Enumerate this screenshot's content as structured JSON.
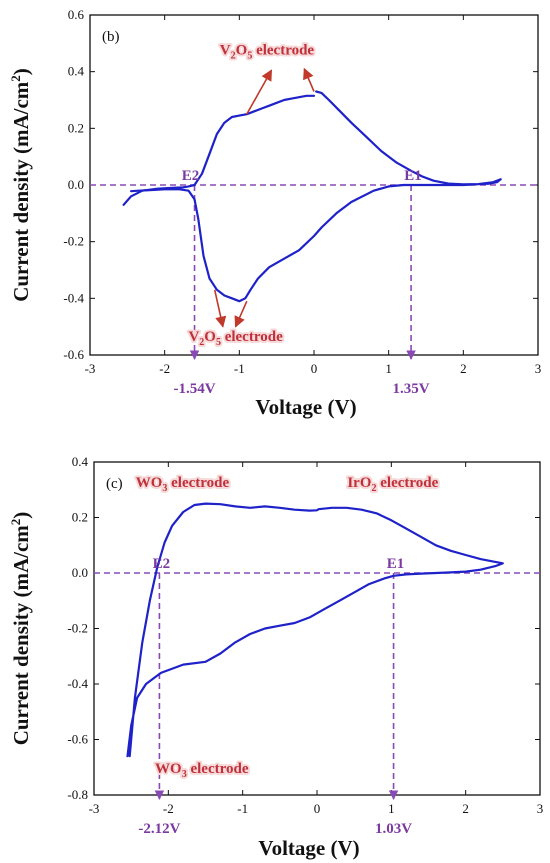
{
  "chart_data": [
    {
      "type": "line",
      "panel_label": "(b)",
      "xlabel": "Voltage (V)",
      "ylabel": "Current density (mA/cm2)",
      "ylabel_main": "Current density (mA/cm",
      "ylabel_sup": "2",
      "ylabel_close": ")",
      "xlim": [
        -3,
        3
      ],
      "ylim": [
        -0.6,
        0.6
      ],
      "xticks": [
        -3,
        -2,
        -1,
        0,
        1,
        2,
        3
      ],
      "yticks": [
        -0.6,
        -0.4,
        -0.2,
        0.0,
        0.2,
        0.4,
        0.6
      ],
      "ytick_labels": [
        "-0.6",
        "-0.4",
        "-0.2",
        "0.0",
        "0.2",
        "0.4",
        "0.6"
      ],
      "series": [
        {
          "color": "#1e22c8",
          "x": [
            -2.55,
            -2.45,
            -2.3,
            -2.1,
            -1.9,
            -1.75,
            -1.68,
            -1.6,
            -1.5,
            -1.4,
            -1.3,
            -1.2,
            -1.1,
            -1.0,
            -0.9,
            -0.8,
            -0.7,
            -0.6,
            -0.5,
            -0.4,
            -0.3,
            -0.2,
            -0.1,
            0.0
          ],
          "y": [
            -0.07,
            -0.04,
            -0.02,
            -0.013,
            -0.01,
            -0.008,
            -0.005,
            0.0,
            0.04,
            0.11,
            0.18,
            0.22,
            0.24,
            0.245,
            0.25,
            0.26,
            0.27,
            0.28,
            0.29,
            0.3,
            0.305,
            0.31,
            0.315,
            0.315
          ]
        },
        {
          "color": "#1e22c8",
          "x": [
            0.03,
            0.1,
            0.2,
            0.35,
            0.5,
            0.7,
            0.9,
            1.1,
            1.3,
            1.45,
            1.6,
            1.8,
            2.0,
            2.2,
            2.35,
            2.45,
            2.5,
            2.4,
            2.2,
            2.0,
            1.8,
            1.5,
            1.2,
            1.0,
            0.8,
            0.5,
            0.3,
            0.1,
            0.0,
            -0.2,
            -0.4,
            -0.6,
            -0.75,
            -0.85,
            -0.92,
            -1.0,
            -1.1,
            -1.2,
            -1.3,
            -1.4,
            -1.48,
            -1.55,
            -1.6,
            -1.68,
            -1.8,
            -2.0,
            -2.2,
            -2.35,
            -2.45
          ],
          "y": [
            0.33,
            0.325,
            0.3,
            0.26,
            0.22,
            0.17,
            0.12,
            0.08,
            0.05,
            0.03,
            0.015,
            0.005,
            0.002,
            0.003,
            0.005,
            0.01,
            0.02,
            0.01,
            0.003,
            0.0,
            0.0,
            0.0,
            0.0,
            -0.005,
            -0.02,
            -0.06,
            -0.1,
            -0.15,
            -0.18,
            -0.23,
            -0.26,
            -0.29,
            -0.33,
            -0.37,
            -0.4,
            -0.41,
            -0.4,
            -0.39,
            -0.37,
            -0.33,
            -0.25,
            -0.12,
            -0.05,
            -0.02,
            -0.015,
            -0.015,
            -0.018,
            -0.02,
            -0.022
          ]
        }
      ],
      "annotations": [
        {
          "id": "v2o5-top",
          "pre": "V",
          "s1": "2",
          "mid": "O",
          "s2": "5",
          "post": " electrode",
          "x": -0.63,
          "y": 0.46,
          "color": "#c0303a"
        },
        {
          "id": "v2o5-bot",
          "pre": "V",
          "s1": "2",
          "mid": "O",
          "s2": "5",
          "post": " electrode",
          "x": -1.05,
          "y": -0.55,
          "color": "#c0303a"
        }
      ],
      "arrows": [
        {
          "from": [
            -0.9,
            0.25
          ],
          "to": [
            -0.57,
            0.405
          ]
        },
        {
          "from": [
            0.0,
            0.33
          ],
          "to": [
            -0.13,
            0.41
          ]
        },
        {
          "from": [
            -1.33,
            -0.37
          ],
          "to": [
            -1.22,
            -0.5
          ]
        },
        {
          "from": [
            -0.9,
            -0.41
          ],
          "to": [
            -1.05,
            -0.5
          ]
        }
      ],
      "points": [
        {
          "label": "E2",
          "x": -1.68,
          "y": 0.0
        },
        {
          "label": "E1",
          "x": 1.3,
          "y": 0.0
        }
      ],
      "voltage_markers": [
        {
          "value": -1.54,
          "label": "-1.54V",
          "x": -1.6
        },
        {
          "value": 1.35,
          "label": "1.35V",
          "x": 1.3
        }
      ]
    },
    {
      "type": "line",
      "panel_label": "(c)",
      "xlabel": "Voltage (V)",
      "ylabel": "Current density (mA/cm2)",
      "ylabel_main": "Current density (mA/cm",
      "ylabel_sup": "2",
      "ylabel_close": ")",
      "xlim": [
        -3,
        3
      ],
      "ylim": [
        -0.8,
        0.4
      ],
      "xticks": [
        -3,
        -2,
        -1,
        0,
        1,
        2,
        3
      ],
      "yticks": [
        -0.8,
        -0.6,
        -0.4,
        -0.2,
        0.0,
        0.2,
        0.4
      ],
      "ytick_labels": [
        "-0.8",
        "-0.6",
        "-0.4",
        "-0.2",
        "0.0",
        "0.2",
        "0.4"
      ],
      "series": [
        {
          "color": "#1e22c8",
          "x": [
            -2.52,
            -2.45,
            -2.35,
            -2.25,
            -2.15,
            -2.05,
            -1.95,
            -1.8,
            -1.65,
            -1.5,
            -1.3,
            -1.1,
            -0.9,
            -0.7,
            -0.5,
            -0.3,
            -0.1,
            0.0,
            0.02,
            0.2,
            0.4,
            0.6,
            0.8,
            1.0,
            1.2,
            1.4,
            1.6,
            1.8,
            2.0,
            2.2,
            2.4,
            2.5,
            2.4,
            2.2,
            2.0,
            1.8,
            1.6,
            1.4,
            1.2,
            1.03,
            0.9,
            0.7,
            0.5,
            0.3,
            0.1,
            -0.1,
            -0.3,
            -0.5,
            -0.7,
            -0.9,
            -1.1,
            -1.3,
            -1.5,
            -1.8,
            -2.1,
            -2.3,
            -2.42,
            -2.5,
            -2.55
          ],
          "y": [
            -0.66,
            -0.45,
            -0.25,
            -0.1,
            0.02,
            0.11,
            0.17,
            0.22,
            0.245,
            0.25,
            0.248,
            0.24,
            0.235,
            0.24,
            0.235,
            0.228,
            0.225,
            0.226,
            0.23,
            0.235,
            0.235,
            0.228,
            0.215,
            0.19,
            0.16,
            0.13,
            0.1,
            0.08,
            0.065,
            0.05,
            0.04,
            0.035,
            0.025,
            0.012,
            0.005,
            0.002,
            0.0,
            -0.002,
            -0.005,
            -0.01,
            -0.02,
            -0.04,
            -0.07,
            -0.1,
            -0.13,
            -0.16,
            -0.18,
            -0.19,
            -0.2,
            -0.22,
            -0.25,
            -0.29,
            -0.32,
            -0.33,
            -0.36,
            -0.4,
            -0.45,
            -0.55,
            -0.66
          ]
        }
      ],
      "annotations": [
        {
          "id": "wo3-top",
          "pre": "WO",
          "s1": "3",
          "mid": "",
          "s2": "",
          "post": " electrode",
          "x": -1.81,
          "y": 0.31,
          "color": "#c0303a"
        },
        {
          "id": "iro2-top",
          "pre": "IrO",
          "s1": "2",
          "mid": "",
          "s2": "",
          "post": " electrode",
          "x": 1.02,
          "y": 0.31,
          "color": "#c0303a"
        },
        {
          "id": "wo3-bot",
          "pre": "WO",
          "s1": "3",
          "mid": "",
          "s2": "",
          "post": " electrode",
          "x": -1.55,
          "y": -0.72,
          "color": "#c0303a"
        }
      ],
      "arrows": [],
      "points": [
        {
          "label": "E2",
          "x": -2.12,
          "y": 0.0
        },
        {
          "label": "E1",
          "x": 1.03,
          "y": 0.0
        }
      ],
      "voltage_markers": [
        {
          "value": -2.12,
          "label": "-2.12V",
          "x": -2.12
        },
        {
          "value": 1.03,
          "label": "1.03V",
          "x": 1.03
        }
      ]
    }
  ],
  "colors": {
    "curve": "#1e22c8",
    "dashed": "#8a4ab5",
    "annotation": "#c0303a",
    "arrow": "#c0392b"
  }
}
